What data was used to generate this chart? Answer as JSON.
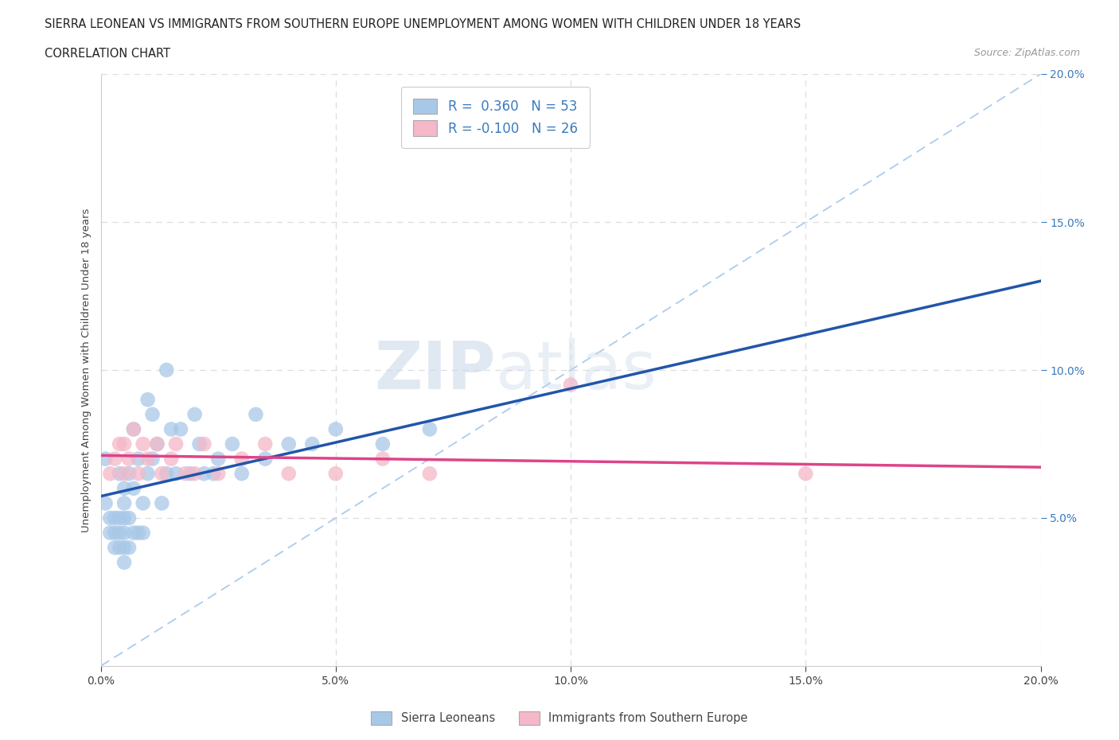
{
  "title_line1": "SIERRA LEONEAN VS IMMIGRANTS FROM SOUTHERN EUROPE UNEMPLOYMENT AMONG WOMEN WITH CHILDREN UNDER 18 YEARS",
  "title_line2": "CORRELATION CHART",
  "source_text": "Source: ZipAtlas.com",
  "ylabel": "Unemployment Among Women with Children Under 18 years",
  "xlim": [
    0.0,
    0.2
  ],
  "ylim": [
    0.0,
    0.2
  ],
  "xticks": [
    0.0,
    0.05,
    0.1,
    0.15,
    0.2
  ],
  "yticks": [
    0.05,
    0.1,
    0.15,
    0.2
  ],
  "xticklabels": [
    "0.0%",
    "5.0%",
    "10.0%",
    "15.0%",
    "20.0%"
  ],
  "yticklabels": [
    "5.0%",
    "10.0%",
    "15.0%",
    "20.0%"
  ],
  "watermark_zip": "ZIP",
  "watermark_atlas": "atlas",
  "legend_r1": "R =  0.360   N = 53",
  "legend_r2": "R = -0.100   N = 26",
  "blue_color": "#a8c8e8",
  "pink_color": "#f4b8c8",
  "blue_line_color": "#2255aa",
  "pink_line_color": "#dd4488",
  "dashed_line_color": "#aaccee",
  "R_blue": 0.36,
  "N_blue": 53,
  "R_pink": -0.1,
  "N_pink": 26,
  "blue_scatter_x": [
    0.001,
    0.001,
    0.002,
    0.002,
    0.003,
    0.003,
    0.003,
    0.004,
    0.004,
    0.004,
    0.004,
    0.005,
    0.005,
    0.005,
    0.005,
    0.005,
    0.005,
    0.006,
    0.006,
    0.006,
    0.007,
    0.007,
    0.007,
    0.008,
    0.008,
    0.009,
    0.009,
    0.01,
    0.01,
    0.011,
    0.011,
    0.012,
    0.013,
    0.014,
    0.014,
    0.015,
    0.016,
    0.017,
    0.019,
    0.02,
    0.021,
    0.022,
    0.024,
    0.025,
    0.028,
    0.03,
    0.033,
    0.035,
    0.04,
    0.045,
    0.05,
    0.06,
    0.07
  ],
  "blue_scatter_y": [
    0.055,
    0.07,
    0.045,
    0.05,
    0.04,
    0.045,
    0.05,
    0.04,
    0.045,
    0.05,
    0.065,
    0.035,
    0.04,
    0.045,
    0.05,
    0.055,
    0.06,
    0.04,
    0.05,
    0.065,
    0.045,
    0.06,
    0.08,
    0.045,
    0.07,
    0.045,
    0.055,
    0.065,
    0.09,
    0.07,
    0.085,
    0.075,
    0.055,
    0.065,
    0.1,
    0.08,
    0.065,
    0.08,
    0.065,
    0.085,
    0.075,
    0.065,
    0.065,
    0.07,
    0.075,
    0.065,
    0.085,
    0.07,
    0.075,
    0.075,
    0.08,
    0.075,
    0.08
  ],
  "pink_scatter_x": [
    0.002,
    0.003,
    0.004,
    0.005,
    0.005,
    0.006,
    0.007,
    0.008,
    0.009,
    0.01,
    0.012,
    0.013,
    0.015,
    0.016,
    0.018,
    0.02,
    0.022,
    0.025,
    0.03,
    0.035,
    0.04,
    0.05,
    0.06,
    0.07,
    0.1,
    0.15
  ],
  "pink_scatter_y": [
    0.065,
    0.07,
    0.075,
    0.065,
    0.075,
    0.07,
    0.08,
    0.065,
    0.075,
    0.07,
    0.075,
    0.065,
    0.07,
    0.075,
    0.065,
    0.065,
    0.075,
    0.065,
    0.07,
    0.075,
    0.065,
    0.065,
    0.07,
    0.065,
    0.095,
    0.065
  ],
  "grid_color": "#dddddd",
  "background_color": "#ffffff",
  "legend_box_blue": "R =  0.360",
  "legend_box_n_blue": "N = 53",
  "legend_box_pink": "R = -0.100",
  "legend_box_n_pink": "N = 26"
}
